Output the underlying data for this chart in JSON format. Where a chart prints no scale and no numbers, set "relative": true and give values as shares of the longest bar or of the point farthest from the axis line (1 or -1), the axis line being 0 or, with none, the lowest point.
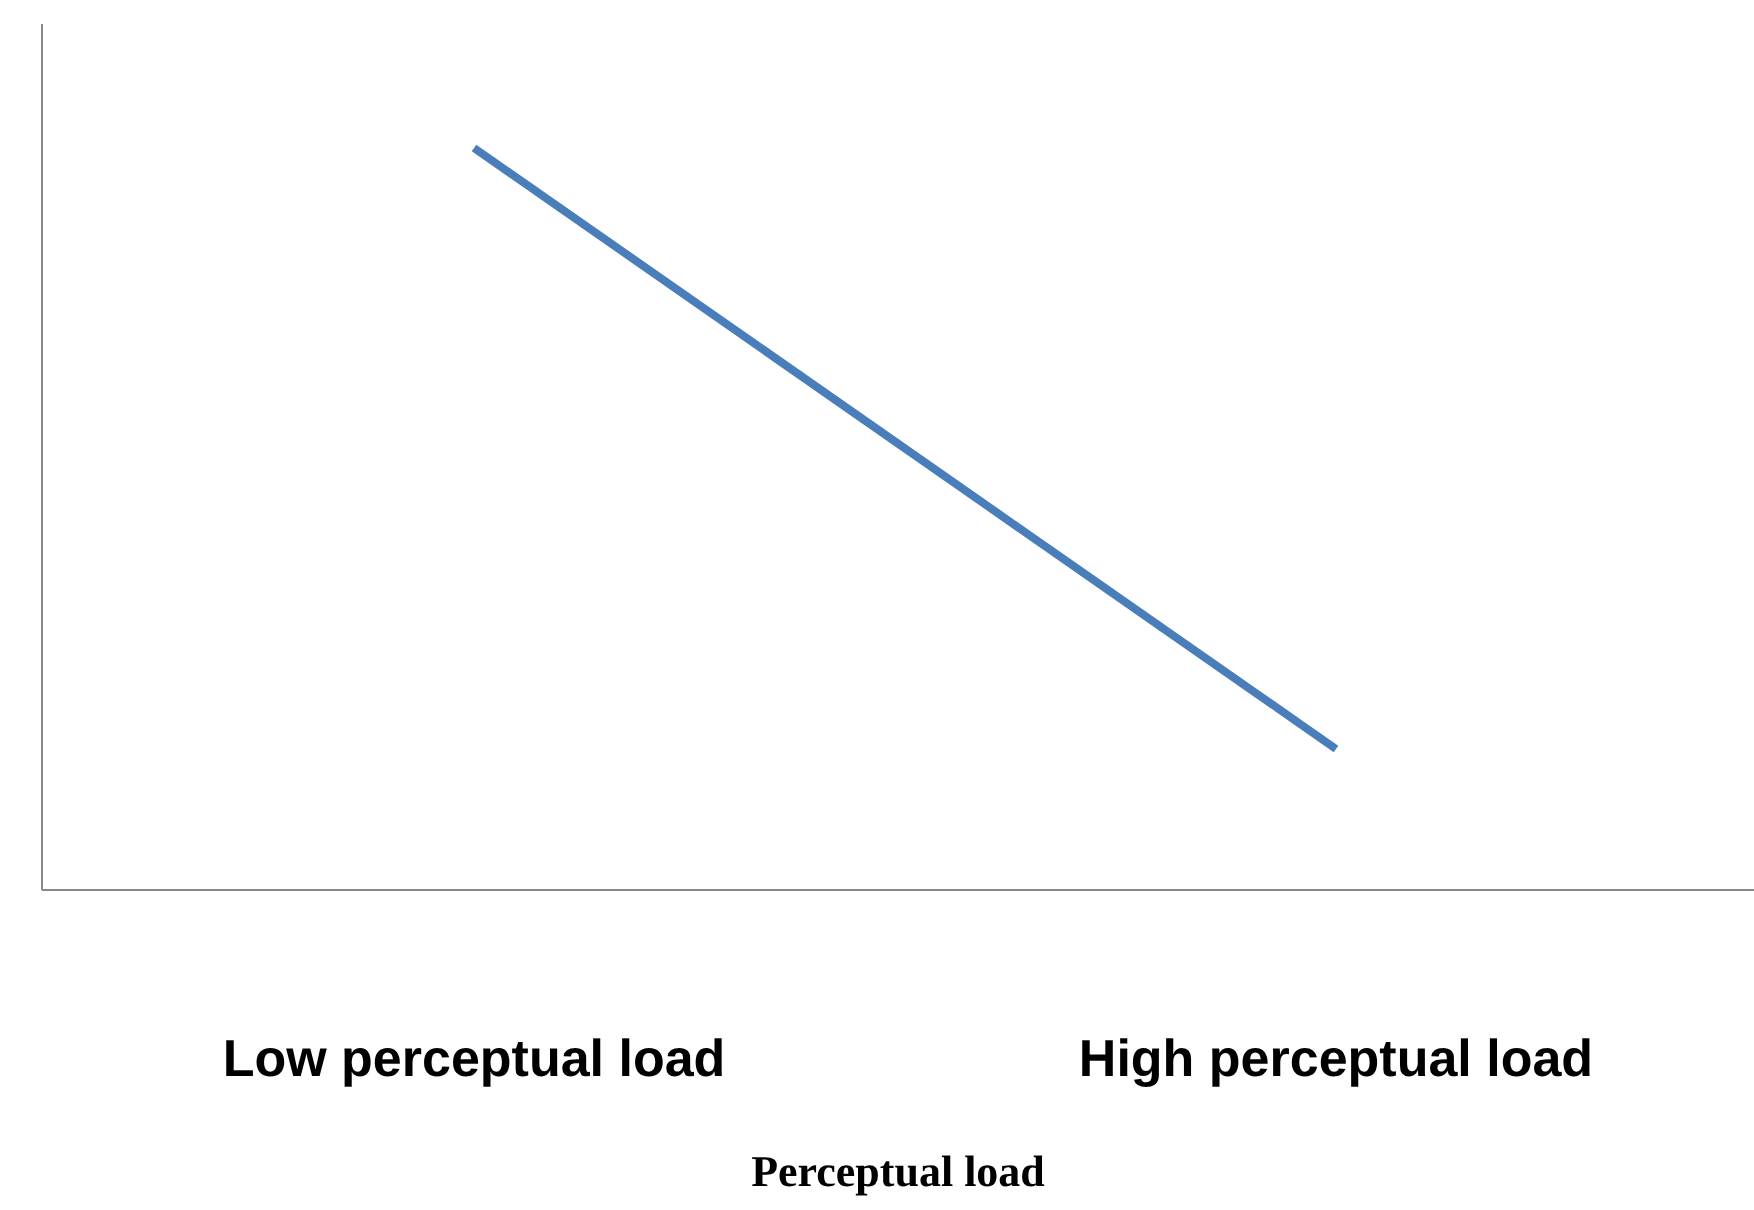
{
  "chart_data": {
    "type": "line",
    "relative": true,
    "categories": [
      "Low perceptual load",
      "High perceptual load"
    ],
    "xlabel": "Perceptual load",
    "series": [
      {
        "color": "#4a7ebb",
        "values": [
          1,
          0.19
        ]
      }
    ],
    "marker": "none",
    "grid": false,
    "legend": false,
    "line_style": "solid"
  }
}
